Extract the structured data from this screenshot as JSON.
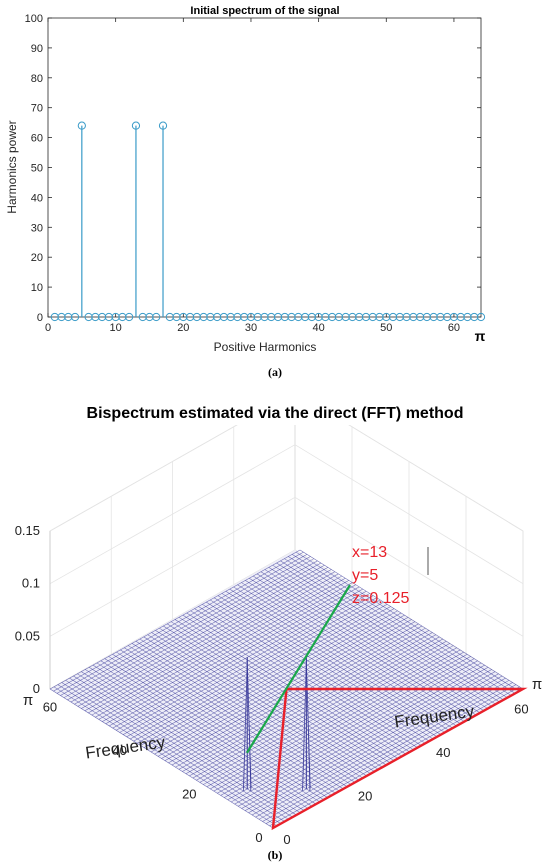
{
  "chart_data": [
    {
      "type": "stem",
      "title": "Initial spectrum of the signal",
      "xlabel": "Positive Harmonics",
      "ylabel": "Harmonics power",
      "xlim": [
        0,
        64
      ],
      "ylim": [
        0,
        100
      ],
      "x_ticks": [
        "0",
        "10",
        "20",
        "30",
        "40",
        "50",
        "60"
      ],
      "x_end_label": "π",
      "y_ticks": [
        "0",
        "10",
        "20",
        "30",
        "40",
        "50",
        "60",
        "70",
        "80",
        "90",
        "100"
      ],
      "x": [
        1,
        2,
        3,
        4,
        5,
        6,
        7,
        8,
        9,
        10,
        11,
        12,
        13,
        14,
        15,
        16,
        17,
        18,
        19,
        20,
        21,
        22,
        23,
        24,
        25,
        26,
        27,
        28,
        29,
        30,
        31,
        32,
        33,
        34,
        35,
        36,
        37,
        38,
        39,
        40,
        41,
        42,
        43,
        44,
        45,
        46,
        47,
        48,
        49,
        50,
        51,
        52,
        53,
        54,
        55,
        56,
        57,
        58,
        59,
        60,
        61,
        62,
        63,
        64
      ],
      "y": [
        0,
        0,
        0,
        0,
        64,
        0,
        0,
        0,
        0,
        0,
        0,
        0,
        64,
        0,
        0,
        0,
        64,
        0,
        0,
        0,
        0,
        0,
        0,
        0,
        0,
        0,
        0,
        0,
        0,
        0,
        0,
        0,
        0,
        0,
        0,
        0,
        0,
        0,
        0,
        0,
        0,
        0,
        0,
        0,
        0,
        0,
        0,
        0,
        0,
        0,
        0,
        0,
        0,
        0,
        0,
        0,
        0,
        0,
        0,
        0,
        0,
        0,
        0,
        0
      ],
      "color": "#3a9bc8",
      "grid": false,
      "panel_label": "(a)"
    },
    {
      "type": "surface",
      "title": "Bispectrum estimated via the direct (FFT) method",
      "xlabel": "Frequency",
      "ylabel": "Frequency",
      "zlim": [
        0,
        0.15
      ],
      "z_ticks": [
        "0",
        "0.05",
        "0.1",
        "0.15"
      ],
      "x_ticks": [
        "0",
        "20",
        "40",
        "60"
      ],
      "y_ticks": [
        "0",
        "20",
        "40",
        "60"
      ],
      "axis_end_label": "π",
      "peaks": [
        {
          "x": 13,
          "y": 5,
          "z": 0.125
        },
        {
          "x": 5,
          "y": 13,
          "z": 0.125
        }
      ],
      "annotation": {
        "lines": [
          "x=13",
          "y=5",
          "z=0.125"
        ]
      },
      "mesh_color": "#3b3b9a",
      "highlight_color": "#e8202a",
      "pointer_color": "#1aa84a",
      "panel_label": "(b)"
    }
  ]
}
